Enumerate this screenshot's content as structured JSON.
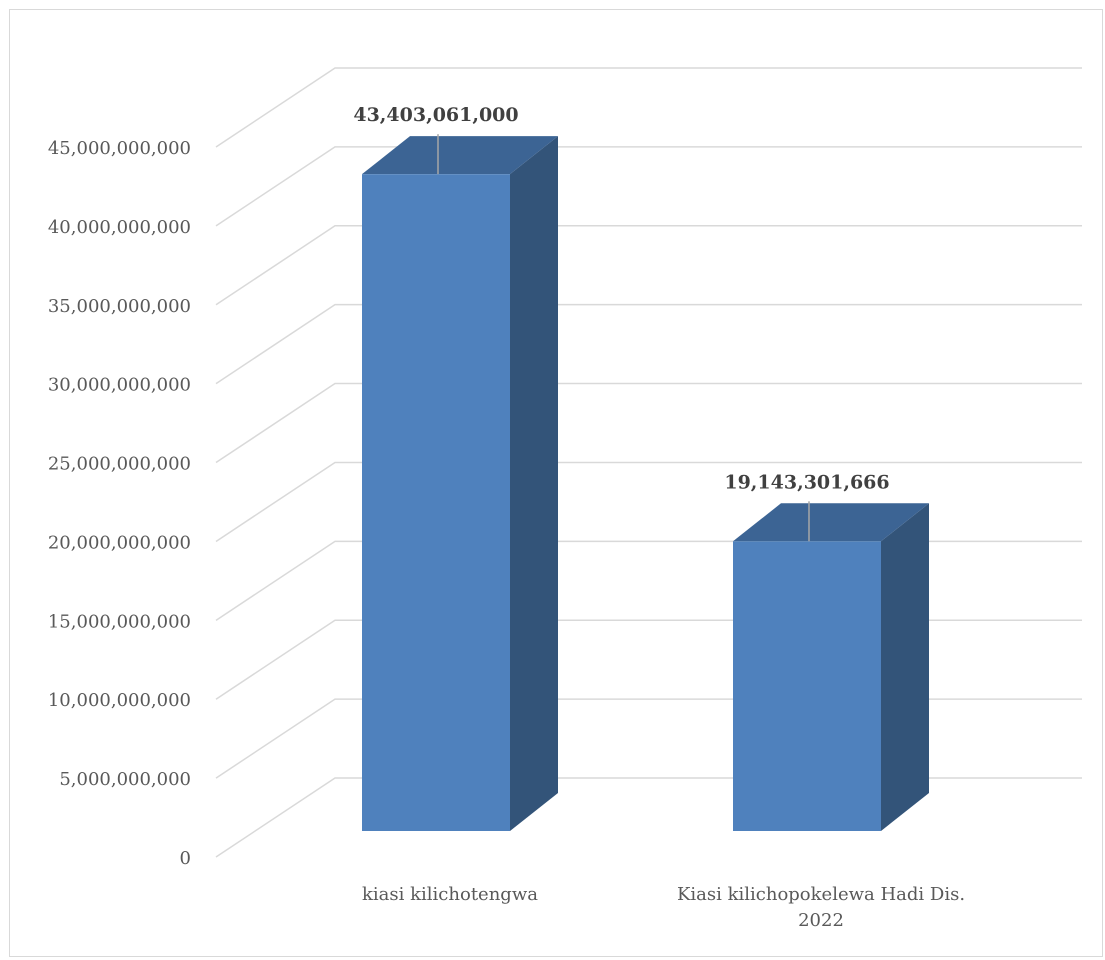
{
  "chart_data": {
    "type": "bar",
    "style": "3d-column",
    "categories": [
      [
        "kiasi kilichotengwa"
      ],
      [
        "Kiasi kilichopokelewa Hadi Dis.",
        "2022"
      ]
    ],
    "values": [
      43403061000,
      19143301666
    ],
    "data_labels": [
      "43,403,061,000",
      "19,143,301,666"
    ],
    "ylim": [
      0,
      45000000000
    ],
    "y_ticks": [
      0,
      5000000000,
      10000000000,
      15000000000,
      20000000000,
      25000000000,
      30000000000,
      35000000000,
      40000000000,
      45000000000
    ],
    "y_tick_labels": [
      "0",
      "5,000,000,000",
      "10,000,000,000",
      "15,000,000,000",
      "20,000,000,000",
      "25,000,000,000",
      "30,000,000,000",
      "35,000,000,000",
      "40,000,000,000",
      "45,000,000,000"
    ],
    "grid": true,
    "legend": "none",
    "title": "",
    "xlabel": "",
    "ylabel": "",
    "colors": {
      "bar_front": "#4f81bd",
      "bar_side": "#335479",
      "bar_top": "#3c6494",
      "grid": "#d9d9d9",
      "text": "#595959",
      "data_label": "#404040"
    }
  }
}
